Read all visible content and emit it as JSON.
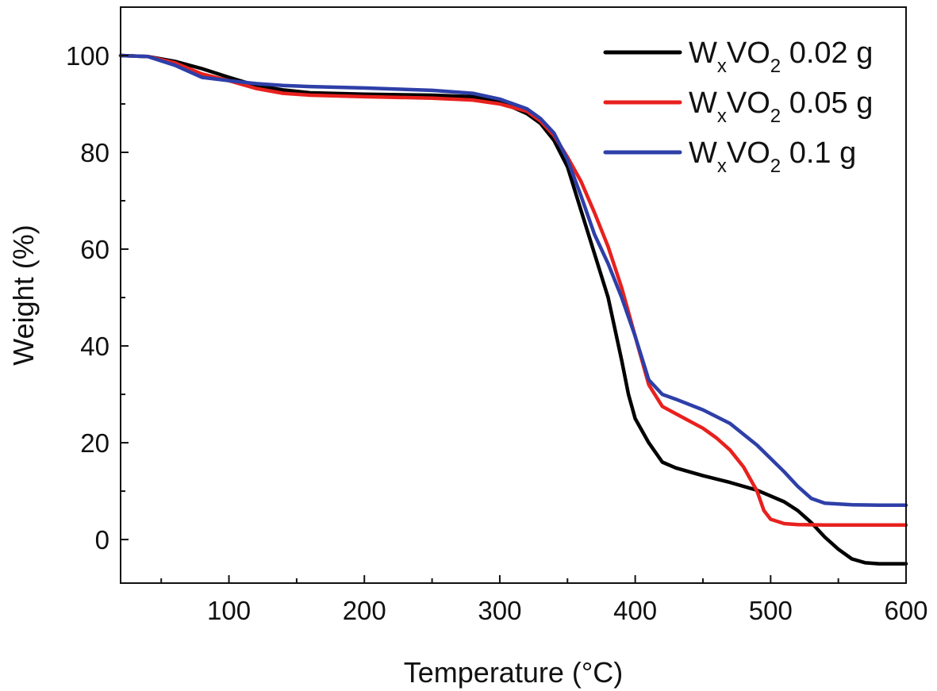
{
  "chart_data": {
    "type": "line",
    "title": "",
    "xlabel": "Temperature (°C)",
    "ylabel": "Weight (%)",
    "xlim": [
      20,
      600
    ],
    "ylim": [
      -9,
      110
    ],
    "xticks": [
      100,
      200,
      300,
      400,
      500,
      600
    ],
    "yticks": [
      0,
      20,
      40,
      60,
      80,
      100
    ],
    "xtick_labels": [
      "100",
      "200",
      "300",
      "400",
      "500",
      "600"
    ],
    "ytick_labels": [
      "0",
      "20",
      "40",
      "60",
      "80",
      "100"
    ],
    "legend_position": "top-right",
    "grid": false,
    "series": [
      {
        "name": "WxVO2 0.02 g",
        "label_main": "W",
        "label_sub1": "x",
        "label_mid": "VO",
        "label_sub2": "2",
        "label_tail": " 0.02 g",
        "color": "#000000",
        "x": [
          20,
          40,
          60,
          80,
          100,
          120,
          140,
          160,
          200,
          250,
          280,
          300,
          320,
          330,
          340,
          350,
          360,
          370,
          380,
          390,
          395,
          400,
          410,
          420,
          430,
          450,
          470,
          490,
          500,
          510,
          520,
          530,
          540,
          550,
          560,
          570,
          580,
          590,
          600
        ],
        "y": [
          100,
          99.8,
          98.8,
          97.3,
          95.5,
          93.8,
          92.9,
          92.3,
          92,
          91.8,
          91.5,
          90.5,
          88,
          86,
          82.5,
          77,
          68,
          59,
          50,
          37,
          30,
          25,
          20,
          16,
          14.8,
          13.2,
          11.8,
          10.2,
          9,
          7.8,
          6,
          3.5,
          0.5,
          -2,
          -4,
          -4.8,
          -5,
          -5,
          -5
        ]
      },
      {
        "name": "WxVO2 0.05 g",
        "label_main": "W",
        "label_sub1": "x",
        "label_mid": "VO",
        "label_sub2": "2",
        "label_tail": " 0.05 g",
        "color": "#e8211e",
        "x": [
          20,
          40,
          60,
          80,
          100,
          120,
          140,
          160,
          200,
          250,
          280,
          300,
          320,
          330,
          340,
          350,
          360,
          370,
          380,
          390,
          400,
          410,
          420,
          430,
          450,
          460,
          470,
          480,
          490,
          495,
          500,
          510,
          520,
          540,
          560,
          580,
          600
        ],
        "y": [
          100,
          99.8,
          98.5,
          96.2,
          94.8,
          93.2,
          92.2,
          91.8,
          91.5,
          91.2,
          90.8,
          90,
          88.5,
          86.5,
          83.5,
          79,
          74,
          67.5,
          60.5,
          52,
          42,
          32,
          27.5,
          26,
          23,
          21,
          18.5,
          15,
          10,
          6,
          4.2,
          3.3,
          3.1,
          3,
          3,
          3,
          3
        ]
      },
      {
        "name": "WxVO2 0.1 g",
        "label_main": "W",
        "label_sub1": "x",
        "label_mid": "VO",
        "label_sub2": "2",
        "label_tail": " 0.1 g",
        "color": "#2e3fa8",
        "x": [
          20,
          40,
          60,
          80,
          100,
          120,
          140,
          160,
          200,
          250,
          280,
          300,
          320,
          330,
          340,
          350,
          360,
          370,
          380,
          390,
          400,
          410,
          420,
          430,
          450,
          470,
          490,
          510,
          520,
          530,
          540,
          560,
          580,
          600
        ],
        "y": [
          100,
          99.8,
          98,
          95.5,
          94.8,
          94.2,
          93.8,
          93.6,
          93.3,
          92.8,
          92.2,
          91,
          89,
          87,
          84,
          78.5,
          71,
          63,
          57,
          50,
          42,
          33,
          30,
          29,
          26.8,
          24,
          19.5,
          14,
          11,
          8.5,
          7.5,
          7.2,
          7.1,
          7.1
        ]
      }
    ]
  }
}
